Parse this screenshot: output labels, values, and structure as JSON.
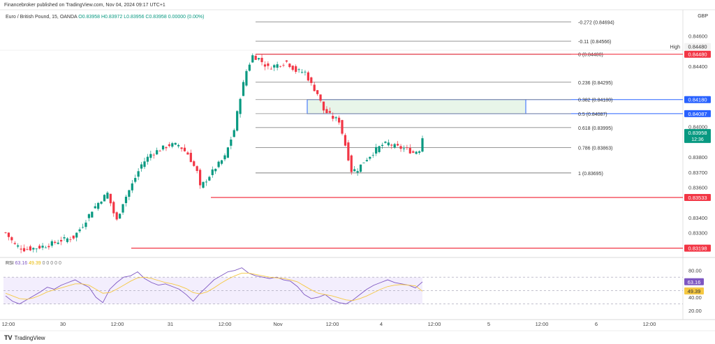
{
  "header": {
    "publisher": "Financebroker published on TradingView.com, Nov 04, 2024 09:17 UTC+1"
  },
  "symbol": {
    "name": "Euro / British Pound, 15, OANDA",
    "ohlc": "O0.83958 H0.83972 L0.83956 C0.83958 0.00000 (0.00%)"
  },
  "currency": "GBP",
  "rsi_label": {
    "name": "RSI",
    "value": "63.16",
    "ma": "49.39",
    "extra": "0 0 0 0 0"
  },
  "brand": {
    "logo": "TV",
    "name": "TradingView"
  },
  "colors": {
    "up": "#089981",
    "down": "#f23645",
    "red_line": "#f23645",
    "blue_line": "#2962ff",
    "green_zone": "#e8f5e9",
    "rsi_line": "#7e57c2",
    "rsi_ma": "#f5c842",
    "rsi_band": "#f3eefd"
  },
  "chart_data": [
    {
      "type": "candlestick",
      "y_unit": "price",
      "ylim": [
        0.8315,
        0.847
      ],
      "x_ticks": [
        "12:00",
        "30",
        "12:00",
        "31",
        "12:00",
        "Nov",
        "12:00",
        "4",
        "12:00",
        "5",
        "12:00",
        "6",
        "12:00"
      ],
      "y_ticks": [
        "0.84600",
        "0.84400",
        "0.84000",
        "0.83800",
        "0.83700",
        "0.83600",
        "0.83400",
        "0.83300",
        "0.83200"
      ],
      "price_path": [
        [
          0,
          0.833
        ],
        [
          3,
          0.8322
        ],
        [
          6,
          0.8319
        ],
        [
          10,
          0.832
        ],
        [
          14,
          0.8322
        ],
        [
          18,
          0.8325
        ],
        [
          22,
          0.8327
        ],
        [
          25,
          0.8335
        ],
        [
          28,
          0.8345
        ],
        [
          31,
          0.8352
        ],
        [
          33,
          0.8356
        ],
        [
          35,
          0.8343
        ],
        [
          36,
          0.8338
        ],
        [
          38,
          0.835
        ],
        [
          41,
          0.8362
        ],
        [
          44,
          0.8375
        ],
        [
          47,
          0.8382
        ],
        [
          50,
          0.8385
        ],
        [
          53,
          0.8388
        ],
        [
          56,
          0.8388
        ],
        [
          59,
          0.8382
        ],
        [
          62,
          0.837
        ],
        [
          63,
          0.836
        ],
        [
          65,
          0.8365
        ],
        [
          68,
          0.8373
        ],
        [
          71,
          0.838
        ],
        [
          74,
          0.8398
        ],
        [
          76,
          0.842
        ],
        [
          78,
          0.8437
        ],
        [
          80,
          0.8447
        ],
        [
          82,
          0.8445
        ],
        [
          85,
          0.8439
        ],
        [
          88,
          0.8441
        ],
        [
          91,
          0.8443
        ],
        [
          94,
          0.8437
        ],
        [
          97,
          0.8436
        ],
        [
          99,
          0.8428
        ],
        [
          101,
          0.8422
        ],
        [
          103,
          0.8411
        ],
        [
          106,
          0.8406
        ],
        [
          108,
          0.8404
        ],
        [
          110,
          0.8388
        ],
        [
          112,
          0.8371
        ],
        [
          114,
          0.8372
        ],
        [
          116,
          0.8377
        ],
        [
          118,
          0.8381
        ],
        [
          120,
          0.8385
        ],
        [
          122,
          0.8388
        ],
        [
          124,
          0.8389
        ],
        [
          126,
          0.8387
        ],
        [
          128,
          0.8386
        ],
        [
          130,
          0.8385
        ],
        [
          132,
          0.8383
        ],
        [
          134,
          0.8385
        ],
        [
          135,
          0.8393
        ]
      ],
      "fib_levels": [
        {
          "ratio": "-0.272",
          "price": 0.84694,
          "label": "-0.272 (0.84694)"
        },
        {
          "ratio": "-0.11",
          "price": 0.84566,
          "label": "-0.11 (0.84566)"
        },
        {
          "ratio": "0",
          "price": 0.8448,
          "label": "0 (0.84480)"
        },
        {
          "ratio": "0.236",
          "price": 0.84295,
          "label": "0.236 (0.84295)"
        },
        {
          "ratio": "0.382",
          "price": 0.8418,
          "label": "0.382 (0.84180)"
        },
        {
          "ratio": "0.5",
          "price": 0.84087,
          "label": "0.5 (0.84087)"
        },
        {
          "ratio": "0.618",
          "price": 0.83995,
          "label": "0.618 (0.83995)"
        },
        {
          "ratio": "0.786",
          "price": 0.83863,
          "label": "0.786 (0.83863)"
        },
        {
          "ratio": "1",
          "price": 0.83695,
          "label": "1 (0.83695)"
        }
      ],
      "horizontal_lines": [
        {
          "price": 0.8448,
          "label": "0.84480",
          "color": "red",
          "tag": "High",
          "tag_value": "0.84480"
        },
        {
          "price": 0.83533,
          "label": "0.83533",
          "color": "red"
        },
        {
          "price": 0.83198,
          "label": "0.83198",
          "color": "red"
        }
      ],
      "zone": {
        "top": 0.8418,
        "bottom": 0.84087,
        "top_label": "0.84180",
        "bottom_label": "0.84087"
      },
      "last_price": {
        "value": "0.83958",
        "countdown": "12:36"
      }
    },
    {
      "type": "line",
      "name": "RSI",
      "ylim": [
        15,
        90
      ],
      "y_ticks": [
        "80.00",
        "40.00",
        "20.00"
      ],
      "bands": [
        70,
        50,
        30
      ],
      "series": [
        {
          "name": "RSI",
          "values": [
            42,
            34,
            30,
            36,
            42,
            48,
            55,
            52,
            58,
            62,
            66,
            60,
            55,
            40,
            32,
            52,
            62,
            70,
            72,
            78,
            68,
            62,
            58,
            60,
            56,
            52,
            44,
            34,
            46,
            56,
            66,
            72,
            78,
            80,
            84,
            76,
            72,
            70,
            68,
            70,
            66,
            64,
            56,
            44,
            38,
            40,
            44,
            36,
            32,
            30,
            36,
            44,
            52,
            58,
            62,
            66,
            62,
            60,
            58,
            54,
            63
          ]
        },
        {
          "name": "MA",
          "values": [
            46,
            42,
            38,
            37,
            39,
            43,
            48,
            51,
            54,
            57,
            60,
            60,
            58,
            52,
            46,
            47,
            52,
            58,
            64,
            69,
            70,
            68,
            65,
            62,
            60,
            57,
            53,
            47,
            45,
            48,
            54,
            61,
            67,
            72,
            76,
            76,
            74,
            72,
            70,
            69,
            68,
            66,
            63,
            57,
            51,
            46,
            44,
            42,
            39,
            36,
            35,
            38,
            42,
            47,
            52,
            56,
            58,
            59,
            58,
            57,
            49
          ]
        }
      ],
      "value_labels": [
        "63.16",
        "49.39"
      ]
    }
  ]
}
